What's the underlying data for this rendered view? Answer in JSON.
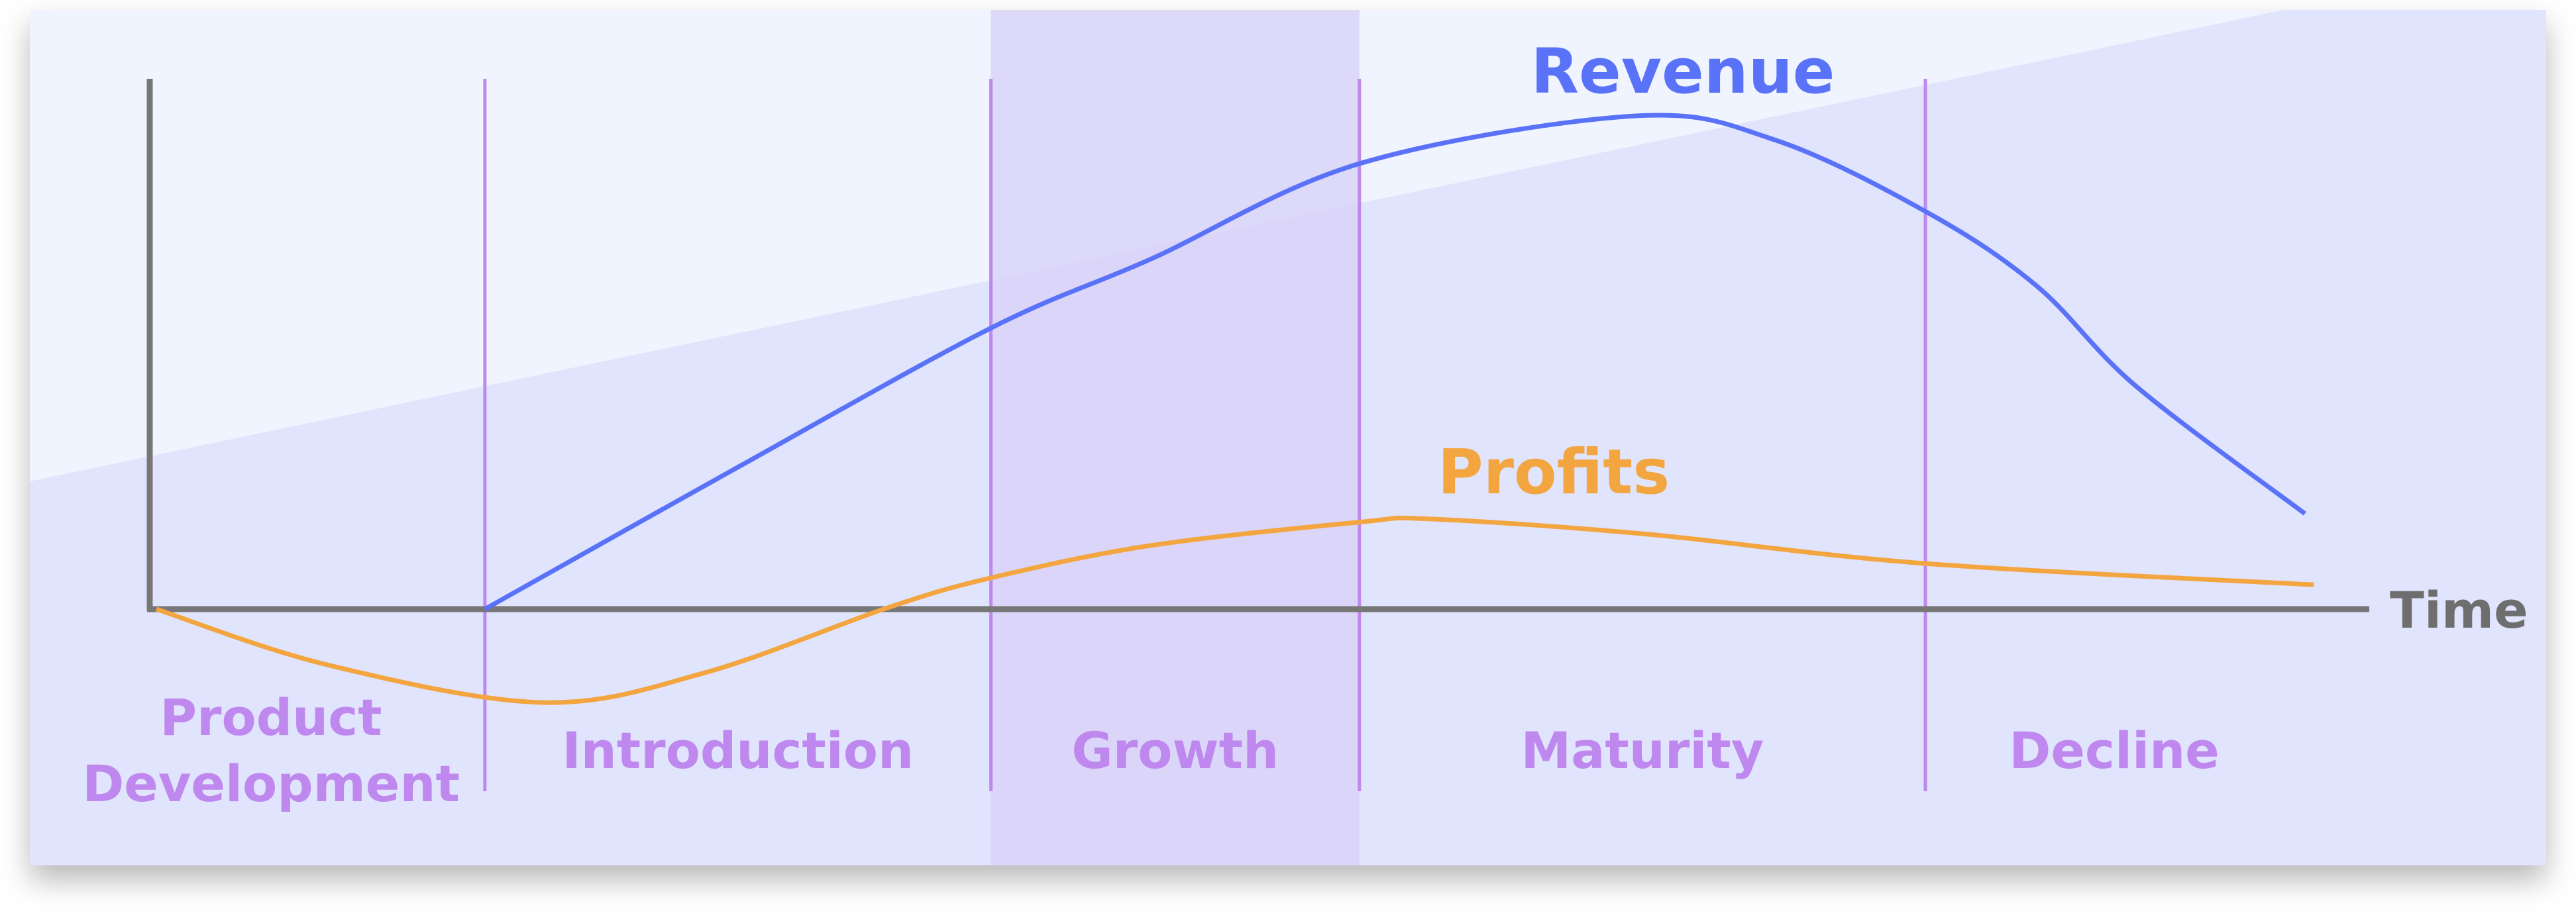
{
  "colors": {
    "card_background": "#e0e4fc",
    "upper_light_region": "#f0f4fe",
    "growth_band": "#d9d3f8",
    "axis": "#777777",
    "phase_divider": "#bf88ee",
    "phase_label": "#bf88ee",
    "revenue": "#5a72f8",
    "profits": "#f3a540",
    "time_label": "#6e6e6e"
  },
  "chart_data": {
    "type": "line",
    "xlabel": "Time",
    "ylabel": "",
    "xlim": [
      0,
      100
    ],
    "ylim": [
      -25,
      100
    ],
    "grid": false,
    "highlighted_phase": "Growth",
    "phases": [
      {
        "label": "Product Development",
        "start": 0,
        "end": 15.1
      },
      {
        "label": "Introduction",
        "start": 15.1,
        "end": 37.9
      },
      {
        "label": "Growth",
        "start": 37.9,
        "end": 54.5
      },
      {
        "label": "Maturity",
        "start": 54.5,
        "end": 80
      },
      {
        "label": "Decline",
        "start": 80,
        "end": 100
      }
    ],
    "series": [
      {
        "name": "Revenue",
        "x": [
          15.1,
          26.6,
          37.9,
          45.1,
          54.5,
          66.9,
          73.2,
          80,
          85,
          89.5,
          97.1
        ],
        "y": [
          0,
          27,
          53,
          66,
          84,
          93,
          88.5,
          75,
          61,
          42,
          18
        ]
      },
      {
        "name": "Profits",
        "x": [
          0.3,
          8,
          17.7,
          25,
          33.2,
          37.9,
          45.1,
          54.5,
          57.7,
          67.3,
          80,
          97.5
        ],
        "y": [
          0,
          -10.5,
          -17.6,
          -12,
          0.2,
          5.9,
          12,
          16.4,
          17,
          14.2,
          8.6,
          4.6
        ]
      }
    ]
  }
}
